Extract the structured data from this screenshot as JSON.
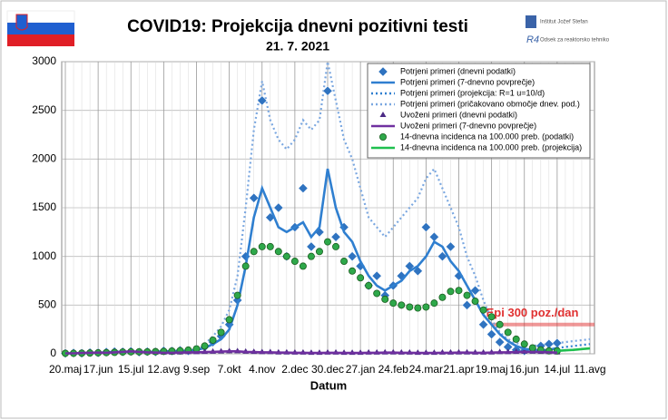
{
  "chart_data": {
    "type": "line",
    "title": "COVID19: Projekcija dnevni pozitivni testi",
    "subtitle": "21. 7. 2021",
    "x_label": "Datum",
    "logo_lines": [
      "Inštitut Jožef Stefan",
      "Odsek za reaktorsko tehniko"
    ],
    "categories": [
      "20.maj",
      null,
      null,
      null,
      "17.jun",
      null,
      null,
      null,
      "15.jul",
      null,
      null,
      null,
      "12.avg",
      null,
      null,
      null,
      "9.sep",
      null,
      null,
      null,
      "7.okt",
      null,
      null,
      null,
      "4.nov",
      null,
      null,
      null,
      "2.dec",
      null,
      null,
      null,
      "30.dec",
      null,
      null,
      null,
      "27.jan",
      null,
      null,
      null,
      "24.feb",
      null,
      null,
      null,
      "24.mar",
      null,
      null,
      null,
      "21.apr",
      null,
      null,
      null,
      "19.maj",
      null,
      null,
      null,
      "16.jun",
      null,
      null,
      null,
      "14.jul",
      null,
      null,
      null,
      "11.avg"
    ],
    "ylim": [
      0,
      3000
    ],
    "yticks": [
      0,
      500,
      1000,
      1500,
      2000,
      2500,
      3000
    ],
    "grid": true,
    "legend": "top-right",
    "series": [
      {
        "name": "Potrjeni primeri (dnevni podatki)",
        "color": "#2f73c0",
        "marker": "diamond",
        "dash": "none",
        "values": [
          5,
          8,
          6,
          12,
          10,
          18,
          22,
          20,
          25,
          18,
          22,
          20,
          30,
          28,
          35,
          30,
          45,
          70,
          120,
          180,
          300,
          550,
          1000,
          1600,
          2600,
          1400,
          1500,
          1000,
          1300,
          1700,
          1100,
          1250,
          2700,
          1200,
          1300,
          1000,
          900,
          700,
          800,
          600,
          700,
          800,
          900,
          850,
          1300,
          1200,
          1000,
          1100,
          800,
          500,
          650,
          300,
          200,
          120,
          70,
          40,
          30,
          45,
          80,
          100,
          110,
          null,
          null,
          null,
          null
        ]
      },
      {
        "name": "Potrjeni primeri (7-dnevno povprečje)",
        "color": "#2f7fd0",
        "marker": "none",
        "dash": "solid",
        "values": [
          5,
          5,
          5,
          10,
          10,
          15,
          20,
          20,
          20,
          20,
          20,
          20,
          25,
          25,
          30,
          30,
          40,
          60,
          100,
          150,
          250,
          500,
          900,
          1400,
          1700,
          1500,
          1300,
          1250,
          1300,
          1350,
          1200,
          1300,
          1900,
          1500,
          1250,
          1150,
          950,
          800,
          700,
          650,
          700,
          750,
          850,
          900,
          1000,
          1150,
          1100,
          950,
          850,
          700,
          550,
          400,
          300,
          200,
          130,
          80,
          50,
          40,
          35,
          40,
          60,
          null,
          null,
          null,
          null
        ]
      },
      {
        "name": "Potrjeni primeri (projekcija: R=1 u=10/d)",
        "color": "#2f7fd0",
        "marker": "none",
        "dash": "dot",
        "values": [
          null,
          null,
          null,
          null,
          null,
          null,
          null,
          null,
          null,
          null,
          null,
          null,
          null,
          null,
          null,
          null,
          null,
          null,
          null,
          null,
          null,
          null,
          null,
          null,
          null,
          null,
          null,
          null,
          null,
          null,
          null,
          null,
          null,
          null,
          null,
          null,
          null,
          null,
          null,
          null,
          null,
          null,
          null,
          null,
          null,
          null,
          null,
          null,
          null,
          null,
          null,
          null,
          null,
          null,
          null,
          null,
          null,
          null,
          null,
          null,
          60,
          70,
          80,
          90,
          100
        ]
      },
      {
        "name": "Potrjeni primeri (pričakovano območje dnev. pod.)",
        "color": "#7aa7e0",
        "marker": "none",
        "dash": "dot",
        "values": [
          null,
          null,
          null,
          null,
          null,
          null,
          null,
          null,
          null,
          null,
          null,
          null,
          null,
          null,
          null,
          null,
          null,
          100,
          180,
          280,
          450,
          800,
          1500,
          2300,
          2800,
          2400,
          2200,
          2100,
          2200,
          2400,
          2300,
          2400,
          3000,
          2600,
          2200,
          2000,
          1700,
          1400,
          1300,
          1200,
          1300,
          1400,
          1500,
          1600,
          1800,
          1900,
          1700,
          1500,
          1300,
          1000,
          800,
          550,
          350,
          220,
          150,
          110,
          90,
          80,
          90,
          100,
          110,
          120,
          130,
          140,
          150
        ]
      },
      {
        "name": "Uvoženi primeri (dnevni podatki)",
        "color": "#4b2a85",
        "marker": "triangle",
        "dash": "none",
        "values": [
          5,
          5,
          8,
          10,
          12,
          10,
          15,
          20,
          25,
          20,
          15,
          12,
          10,
          10,
          12,
          15,
          15,
          18,
          20,
          22,
          25,
          25,
          20,
          18,
          15,
          15,
          12,
          12,
          10,
          10,
          8,
          8,
          10,
          10,
          8,
          8,
          8,
          10,
          10,
          12,
          12,
          10,
          10,
          8,
          8,
          8,
          10,
          10,
          12,
          12,
          10,
          10,
          12,
          15,
          15,
          18,
          20,
          20,
          18,
          15,
          12,
          null,
          null,
          null,
          null
        ]
      },
      {
        "name": "Uvoženi primeri (7-dnevno povprečje)",
        "color": "#7030a0",
        "marker": "none",
        "dash": "solid",
        "values": [
          5,
          5,
          8,
          10,
          12,
          10,
          15,
          20,
          25,
          20,
          15,
          12,
          10,
          10,
          12,
          15,
          15,
          18,
          20,
          22,
          25,
          25,
          20,
          18,
          15,
          15,
          12,
          12,
          10,
          10,
          8,
          8,
          10,
          10,
          8,
          8,
          8,
          10,
          10,
          12,
          12,
          10,
          10,
          8,
          8,
          8,
          10,
          10,
          12,
          12,
          10,
          10,
          12,
          15,
          15,
          18,
          20,
          20,
          18,
          15,
          12,
          null,
          null,
          null,
          null
        ]
      },
      {
        "name": "14-dnevna incidenca na 100.000 preb. (podatki)",
        "color": "#2ea84a",
        "marker": "circle",
        "dash": "none",
        "values": [
          5,
          5,
          6,
          8,
          10,
          12,
          15,
          18,
          20,
          20,
          20,
          22,
          25,
          28,
          32,
          38,
          50,
          80,
          140,
          220,
          350,
          600,
          900,
          1050,
          1100,
          1100,
          1050,
          1000,
          950,
          900,
          1000,
          1050,
          1150,
          1100,
          950,
          850,
          780,
          700,
          620,
          560,
          520,
          500,
          480,
          470,
          480,
          520,
          580,
          640,
          650,
          600,
          540,
          450,
          380,
          300,
          220,
          150,
          100,
          60,
          40,
          30,
          30,
          null,
          null,
          null,
          null
        ]
      },
      {
        "name": "14-dnevna incidenca na 100.000 preb. (projekcija)",
        "color": "#1fbf4f",
        "marker": "none",
        "dash": "solid",
        "values": [
          null,
          null,
          null,
          null,
          null,
          null,
          null,
          null,
          null,
          null,
          null,
          null,
          null,
          null,
          null,
          null,
          null,
          null,
          null,
          null,
          null,
          null,
          null,
          null,
          null,
          null,
          null,
          null,
          null,
          null,
          null,
          null,
          null,
          null,
          null,
          null,
          null,
          null,
          null,
          null,
          null,
          null,
          null,
          null,
          null,
          null,
          null,
          null,
          null,
          null,
          null,
          null,
          null,
          null,
          null,
          null,
          null,
          null,
          null,
          null,
          30,
          35,
          40,
          48,
          55
        ]
      }
    ],
    "annotations": [
      {
        "text": "Epi 300 poz./dan",
        "y": 300,
        "color": "#e03030"
      }
    ]
  }
}
